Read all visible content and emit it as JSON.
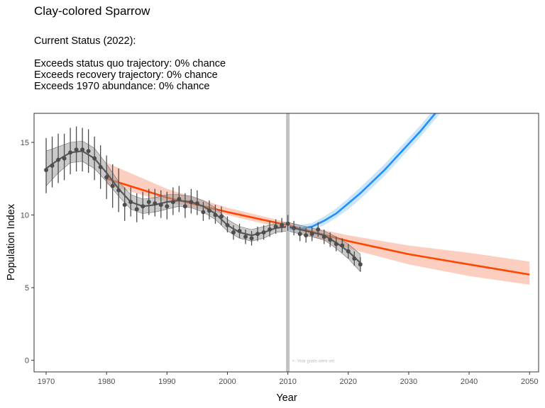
{
  "title": "Clay-colored Sparrow",
  "status": {
    "heading": "Current Status (2022):",
    "lines": [
      "Exceeds status quo trajectory: 0% chance",
      "Exceeds recovery trajectory: 0% chance",
      "Exceeds 1970 abundance: 0% chance"
    ]
  },
  "chart_data": {
    "type": "line",
    "xlabel": "Year",
    "ylabel": "Population Index",
    "xlim": [
      1968,
      2051.5
    ],
    "ylim": [
      -0.8,
      17
    ],
    "x_ticks": [
      1970,
      1980,
      1990,
      2000,
      2010,
      2020,
      2030,
      2040,
      2050
    ],
    "y_ticks": [
      0,
      5,
      10,
      15
    ],
    "grid": false,
    "annotation": {
      "x": 2010,
      "text": "<- Year goals were set"
    },
    "colors": {
      "observed": "#4d4d4d",
      "smooth": "#595959",
      "smooth_band": "#9e9e9e",
      "status_quo": "#ff4500",
      "status_quo_band": "#fcc6b4",
      "recovery": "#1e90ff",
      "recovery_band": "#c6e2fb",
      "goal_line": "#c2c2c2"
    },
    "observed": {
      "x": [
        1970,
        1971,
        1972,
        1973,
        1974,
        1975,
        1976,
        1977,
        1978,
        1979,
        1980,
        1981,
        1982,
        1983,
        1984,
        1985,
        1986,
        1987,
        1988,
        1989,
        1990,
        1991,
        1992,
        1993,
        1994,
        1995,
        1996,
        1997,
        1998,
        1999,
        2000,
        2001,
        2002,
        2003,
        2004,
        2005,
        2006,
        2007,
        2008,
        2009,
        2010,
        2011,
        2012,
        2013,
        2014,
        2015,
        2016,
        2017,
        2018,
        2019,
        2020,
        2021,
        2022
      ],
      "y": [
        13.1,
        13.4,
        13.8,
        13.9,
        14.3,
        14.5,
        14.5,
        14.4,
        13.9,
        13.3,
        12.6,
        12.0,
        11.7,
        10.7,
        10.9,
        10.4,
        10.6,
        10.9,
        10.8,
        10.7,
        10.6,
        10.9,
        11.1,
        10.6,
        10.9,
        10.8,
        10.2,
        10.3,
        10.0,
        9.9,
        9.3,
        8.8,
        8.9,
        8.5,
        8.4,
        8.7,
        8.8,
        9.0,
        9.2,
        9.3,
        9.4,
        9.1,
        8.7,
        8.6,
        8.7,
        9.0,
        8.5,
        8.3,
        8.0,
        7.9,
        7.5,
        7.0,
        6.6
      ],
      "lower": [
        11.5,
        11.9,
        12.2,
        12.4,
        12.8,
        13.0,
        13.0,
        12.9,
        12.4,
        11.8,
        11.1,
        10.5,
        10.2,
        9.6,
        9.9,
        9.5,
        9.7,
        10.0,
        9.9,
        9.8,
        9.7,
        10.0,
        10.2,
        9.8,
        10.1,
        10.0,
        9.6,
        9.7,
        9.4,
        9.3,
        8.8,
        8.3,
        8.4,
        8.0,
        7.9,
        8.2,
        8.3,
        8.5,
        8.7,
        8.8,
        8.9,
        8.6,
        8.2,
        8.1,
        8.2,
        8.5,
        8.0,
        7.8,
        7.5,
        7.4,
        7.0,
        6.5,
        6.1
      ],
      "upper": [
        15.3,
        15.4,
        15.6,
        15.6,
        16.0,
        16.1,
        16.0,
        15.9,
        15.4,
        14.8,
        14.1,
        13.5,
        13.2,
        11.9,
        11.9,
        11.5,
        11.6,
        11.8,
        11.8,
        11.7,
        11.6,
        11.9,
        12.0,
        11.5,
        11.8,
        11.7,
        10.9,
        11.0,
        10.7,
        10.6,
        9.9,
        9.3,
        9.4,
        9.0,
        8.9,
        9.2,
        9.3,
        9.6,
        9.7,
        9.8,
        10.0,
        9.6,
        9.2,
        9.1,
        9.2,
        9.5,
        9.0,
        8.8,
        8.5,
        8.4,
        8.0,
        7.5,
        7.1
      ]
    },
    "smooth": {
      "x": [
        1970,
        1972,
        1974,
        1976,
        1978,
        1980,
        1982,
        1984,
        1986,
        1988,
        1990,
        1992,
        1994,
        1996,
        1998,
        2000,
        2002,
        2004,
        2006,
        2008,
        2010,
        2012,
        2014,
        2016,
        2018,
        2020,
        2022
      ],
      "y": [
        13.2,
        13.8,
        14.3,
        14.4,
        13.9,
        12.9,
        11.8,
        10.9,
        10.6,
        10.7,
        10.9,
        11.0,
        10.9,
        10.6,
        10.1,
        9.3,
        8.8,
        8.6,
        8.8,
        9.1,
        9.2,
        9.0,
        8.8,
        8.6,
        8.1,
        7.5,
        6.7
      ],
      "lower": [
        12.0,
        12.9,
        13.6,
        13.7,
        13.2,
        12.3,
        11.3,
        10.4,
        10.1,
        10.2,
        10.4,
        10.6,
        10.5,
        10.2,
        9.7,
        8.9,
        8.4,
        8.2,
        8.4,
        8.8,
        8.9,
        8.7,
        8.5,
        8.3,
        7.7,
        7.0,
        6.1
      ],
      "upper": [
        14.4,
        14.7,
        15.0,
        15.1,
        14.6,
        13.5,
        12.3,
        11.4,
        11.1,
        11.2,
        11.4,
        11.4,
        11.3,
        11.0,
        10.5,
        9.7,
        9.2,
        9.0,
        9.2,
        9.4,
        9.5,
        9.3,
        9.1,
        8.9,
        8.5,
        8.0,
        7.3
      ]
    },
    "status_quo": {
      "x": [
        1980,
        1990,
        2000,
        2010,
        2020,
        2030,
        2040,
        2050
      ],
      "y": [
        12.5,
        11.2,
        10.2,
        9.3,
        8.2,
        7.3,
        6.6,
        5.9
      ],
      "lower": [
        12.1,
        10.9,
        10.0,
        9.0,
        7.7,
        6.6,
        5.8,
        5.2
      ],
      "upper": [
        13.6,
        11.8,
        10.5,
        9.5,
        8.6,
        7.9,
        7.4,
        6.8
      ]
    },
    "recovery": {
      "x": [
        2010,
        2012,
        2014,
        2016,
        2018,
        2020,
        2022,
        2024,
        2026,
        2028,
        2030,
        2032,
        2034,
        2036
      ],
      "y": [
        9.1,
        9.05,
        9.2,
        9.6,
        10.1,
        10.8,
        11.5,
        12.3,
        13.1,
        14.0,
        14.9,
        15.8,
        16.8,
        17.8
      ],
      "lower": [
        8.9,
        8.85,
        8.95,
        9.3,
        9.8,
        10.4,
        11.1,
        11.9,
        12.7,
        13.6,
        14.5,
        15.4,
        16.4,
        17.4
      ],
      "upper": [
        9.3,
        9.3,
        9.45,
        9.9,
        10.45,
        11.15,
        11.9,
        12.7,
        13.5,
        14.4,
        15.3,
        16.2,
        17.2,
        18.2
      ]
    }
  }
}
